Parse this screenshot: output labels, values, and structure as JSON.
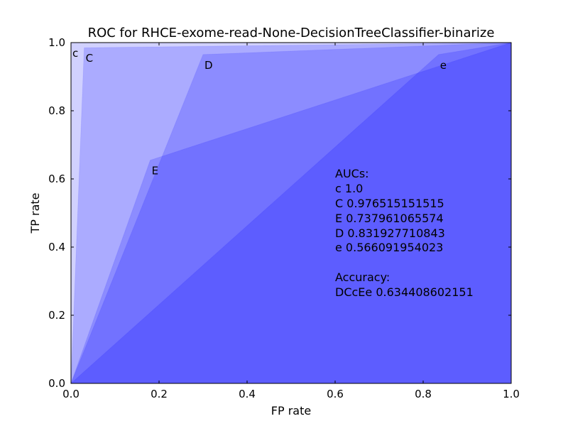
{
  "chart_data": {
    "type": "area",
    "title": "ROC for RHCE-exome-read-None-DecisionTreeClassifier-binarize",
    "xlabel": "FP rate",
    "ylabel": "TP rate",
    "xlim": [
      0.0,
      1.0
    ],
    "ylim": [
      0.0,
      1.0
    ],
    "x_ticks": [
      "0.0",
      "0.2",
      "0.4",
      "0.6",
      "0.8",
      "1.0"
    ],
    "y_ticks": [
      "0.0",
      "0.2",
      "0.4",
      "0.6",
      "0.8",
      "1.0"
    ],
    "fill_color": "#0000ff",
    "series": [
      {
        "name": "c",
        "x": [
          0.0,
          0.0,
          1.0
        ],
        "y": [
          0.0,
          1.0,
          1.0
        ]
      },
      {
        "name": "C",
        "x": [
          0.0,
          0.03,
          1.0
        ],
        "y": [
          0.0,
          0.985,
          1.0
        ]
      },
      {
        "name": "D",
        "x": [
          0.0,
          0.3,
          1.0
        ],
        "y": [
          0.0,
          0.965,
          1.0
        ]
      },
      {
        "name": "E",
        "x": [
          0.0,
          0.18,
          1.0
        ],
        "y": [
          0.0,
          0.655,
          1.0
        ]
      },
      {
        "name": "e",
        "x": [
          0.0,
          0.835,
          1.0
        ],
        "y": [
          0.0,
          0.965,
          1.0
        ]
      }
    ],
    "annotation": {
      "auc_heading": "AUCs:",
      "auc_lines": [
        "c  1.0",
        "C  0.976515151515",
        "E  0.737961065574",
        "D  0.831927710843",
        "e  0.566091954023"
      ],
      "accuracy_heading": "Accuracy:",
      "accuracy_line": "DCcEe  0.634408602151"
    }
  }
}
